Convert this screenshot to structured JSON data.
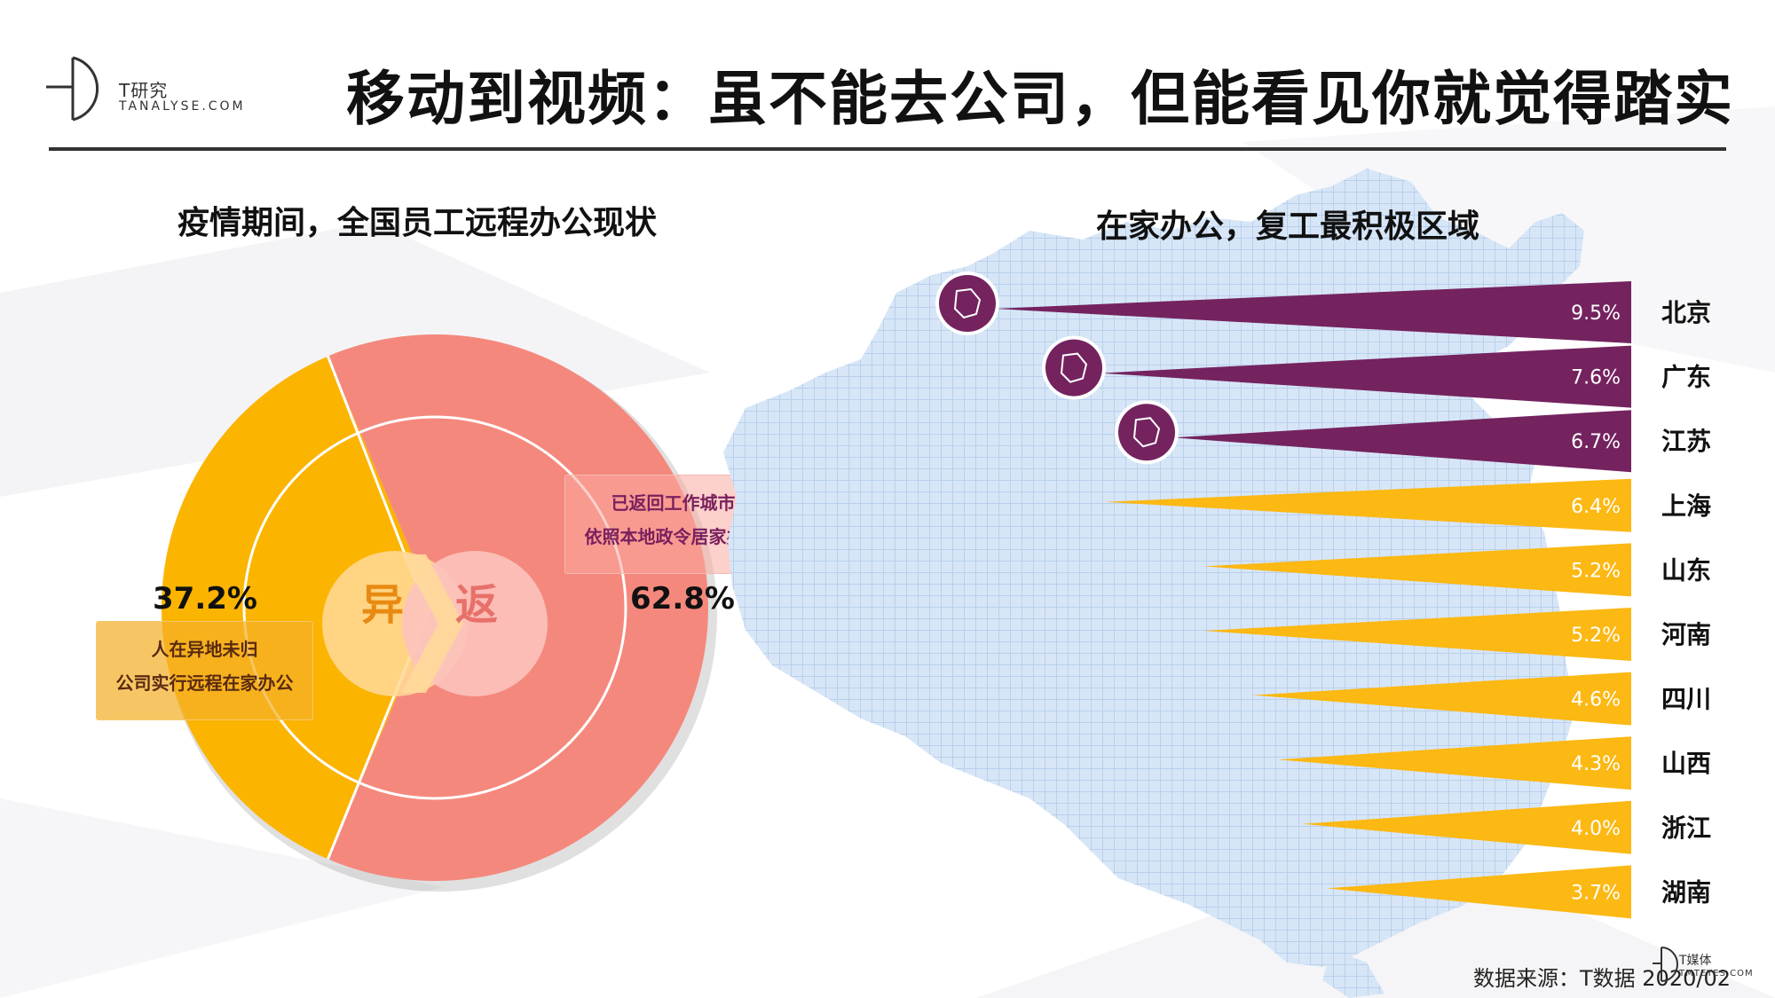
{
  "header": {
    "title": "移动到视频：虽不能去公司，但能看见你就觉得踏实",
    "brand": {
      "name": "T研究",
      "domain": "TANALYSE.COM"
    }
  },
  "left_panel": {
    "heading": "疫情期间，全国员工远程办公现状",
    "center_chars": {
      "yi": "异",
      "fan": "返"
    },
    "percent_labels": {
      "yi": "37.2%",
      "fan": "62.8%"
    },
    "callouts": {
      "yi": [
        "人在异地未归",
        "公司实行远程在家办公"
      ],
      "fan": [
        "已返回工作城市",
        "依照本地政令居家办公"
      ]
    }
  },
  "right_panel": {
    "heading": "在家办公，复工最积极区域"
  },
  "footer": {
    "source": "数据来源：T数据 2020/02",
    "brand": {
      "name": "T媒体",
      "domain": "TMTEYES.COM"
    }
  },
  "colors": {
    "yi": "#fbb400",
    "fan": "#f5887d",
    "top3": "#74235f",
    "other": "#fcb813",
    "map": "#c9dcf2"
  },
  "chart_data": [
    {
      "type": "pie",
      "title": "疫情期间，全国员工远程办公现状",
      "slices": [
        {
          "label": "异",
          "value": 37.2,
          "display": "37.2%",
          "description": [
            "人在异地未归",
            "公司实行远程在家办公"
          ]
        },
        {
          "label": "返",
          "value": 62.8,
          "display": "62.8%",
          "description": [
            "已返回工作城市",
            "依照本地政令居家办公"
          ]
        }
      ]
    },
    {
      "type": "bar",
      "title": "在家办公，复工最积极区域",
      "categories": [
        "北京",
        "广东",
        "江苏",
        "上海",
        "山东",
        "河南",
        "四川",
        "山西",
        "浙江",
        "湖南"
      ],
      "values": [
        9.5,
        7.6,
        6.7,
        6.4,
        5.2,
        5.2,
        4.6,
        4.3,
        4.0,
        3.7
      ],
      "value_labels": [
        "9.5%",
        "7.6%",
        "6.7%",
        "6.4%",
        "5.2%",
        "5.2%",
        "4.6%",
        "4.3%",
        "4.0%",
        "3.7%"
      ],
      "highlighted_top": 3,
      "unit": "%"
    }
  ]
}
